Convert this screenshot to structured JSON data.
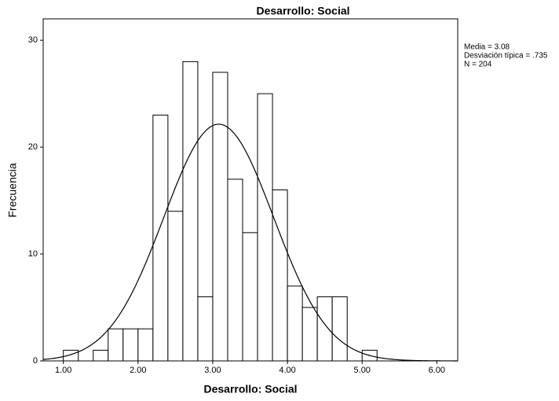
{
  "chart_data": {
    "type": "histogram",
    "title": "Desarrollo: Social",
    "x_label": "Desarrollo: Social",
    "y_label": "Frecuencia",
    "bins": [
      1.0,
      1.2,
      1.4,
      1.6,
      1.8,
      2.0,
      2.2,
      2.4,
      2.6,
      2.8,
      3.0,
      3.2,
      3.4,
      3.6,
      3.8,
      4.0,
      4.2,
      4.4,
      4.6,
      4.8,
      5.0,
      5.2
    ],
    "counts": [
      1,
      0,
      1,
      3,
      3,
      3,
      23,
      14,
      28,
      6,
      27,
      17,
      12,
      25,
      16,
      7,
      5,
      6,
      6,
      0,
      1
    ],
    "color": "#ffffff",
    "edge_color": "#000000",
    "xlim": [
      0.73,
      6.28
    ],
    "xticks": [
      {
        "value": 1,
        "label": "1.00"
      },
      {
        "value": 2,
        "label": "2.00"
      },
      {
        "value": 3,
        "label": "3.00"
      },
      {
        "value": 4,
        "label": "4.00"
      },
      {
        "value": 5,
        "label": "5.00"
      },
      {
        "value": 6,
        "label": "6.00"
      }
    ],
    "ylim": [
      0,
      32
    ],
    "yticks": [
      0,
      10,
      20,
      30
    ],
    "grid": false,
    "stats": [
      {
        "value": 3.08,
        "label": "Media = 3.08"
      },
      {
        "value": 0.735,
        "label": "Desviación típica = .735"
      },
      {
        "value": 204,
        "label": "N = 204"
      }
    ]
  }
}
